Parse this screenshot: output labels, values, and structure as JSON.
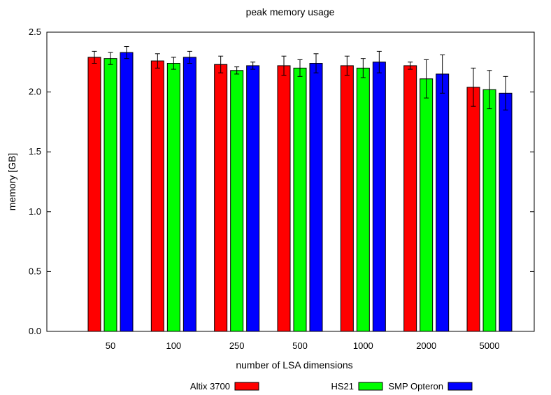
{
  "chart_data": {
    "type": "bar",
    "title": "peak memory usage",
    "xlabel": "number of LSA dimensions",
    "ylabel": "memory [GB]",
    "ylim": [
      0,
      2.5
    ],
    "yticks": [
      "0.0",
      "0.5",
      "1.0",
      "1.5",
      "2.0",
      "2.5"
    ],
    "categories": [
      "50",
      "100",
      "250",
      "500",
      "1000",
      "2000",
      "5000"
    ],
    "grid": false,
    "legend_position": "bottom",
    "series": [
      {
        "name": "Altix 3700",
        "color": "#ff0000",
        "values": [
          2.29,
          2.26,
          2.23,
          2.22,
          2.22,
          2.22,
          2.04
        ],
        "errors": [
          0.05,
          0.06,
          0.07,
          0.08,
          0.08,
          0.03,
          0.16
        ]
      },
      {
        "name": "HS21",
        "color": "#00ff00",
        "values": [
          2.28,
          2.24,
          2.18,
          2.2,
          2.2,
          2.11,
          2.02
        ],
        "errors": [
          0.05,
          0.05,
          0.03,
          0.07,
          0.08,
          0.16,
          0.16
        ]
      },
      {
        "name": "SMP Opteron",
        "color": "#0000ff",
        "values": [
          2.33,
          2.29,
          2.22,
          2.24,
          2.25,
          2.15,
          1.99
        ],
        "errors": [
          0.05,
          0.05,
          0.03,
          0.08,
          0.09,
          0.16,
          0.14
        ]
      }
    ]
  }
}
